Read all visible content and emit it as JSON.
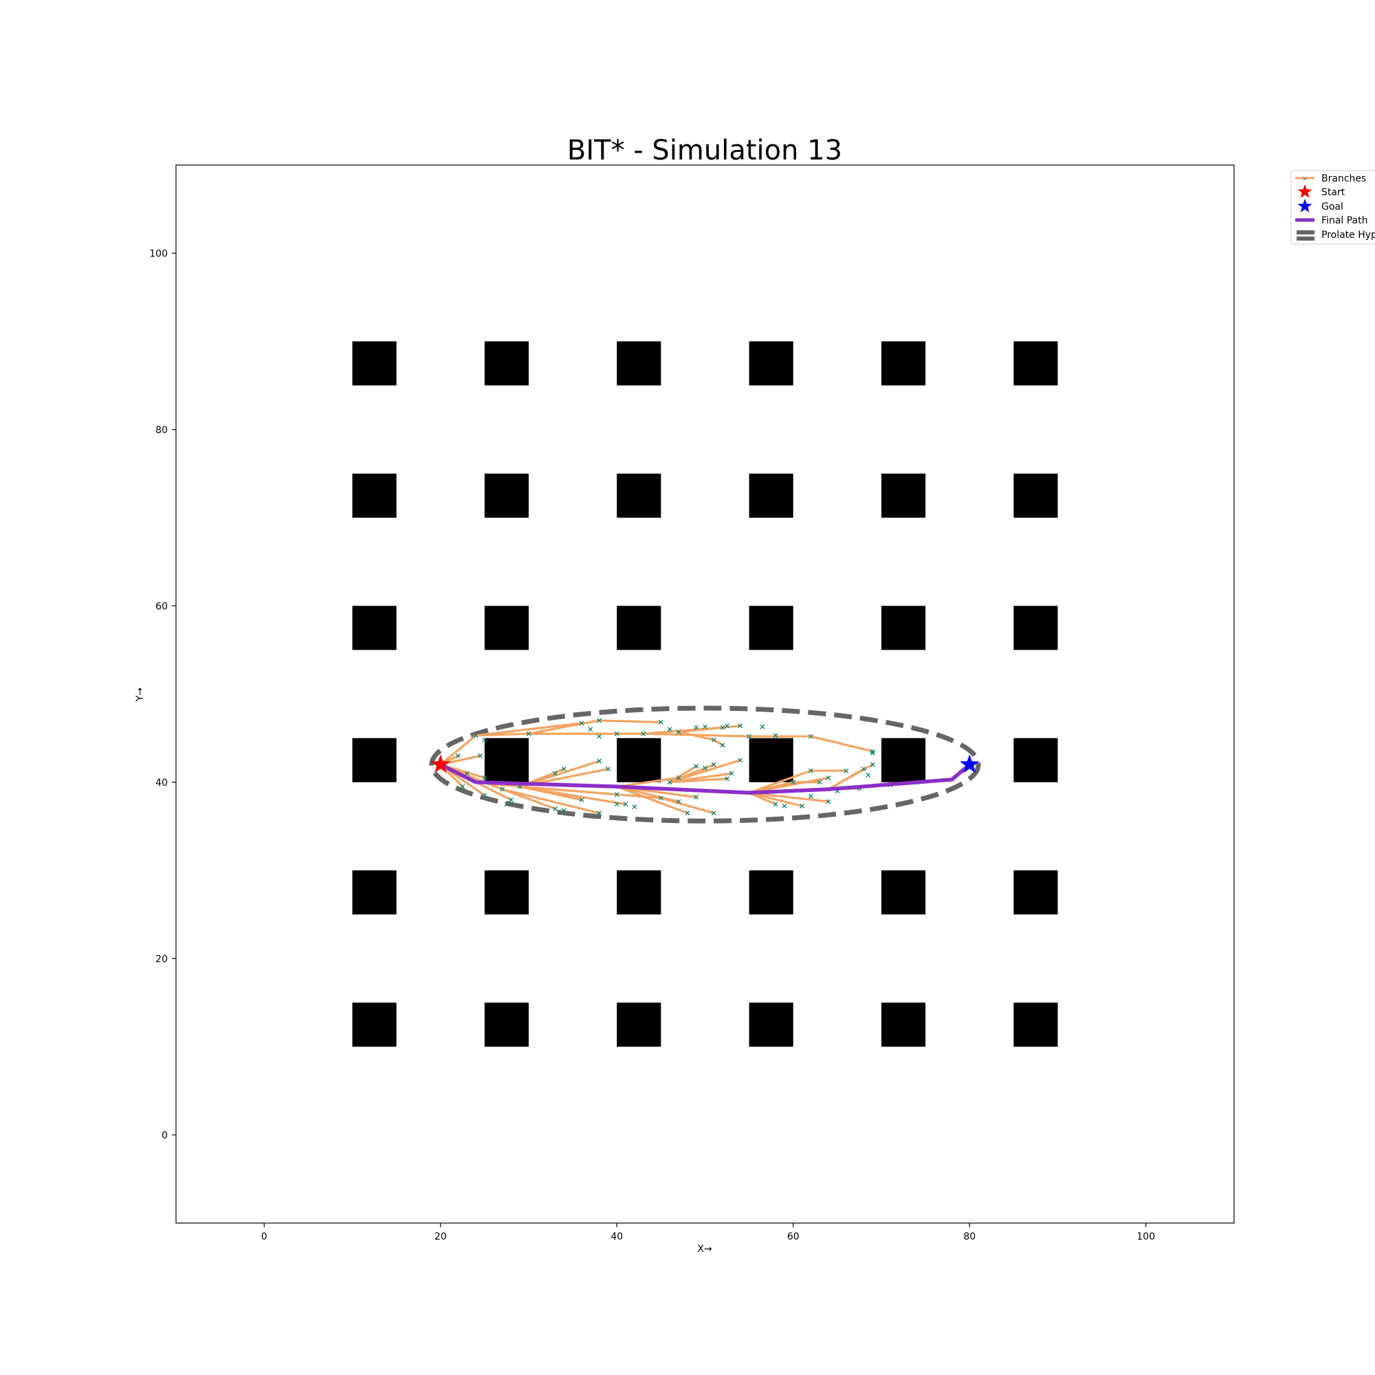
{
  "chart_data": {
    "type": "scatter",
    "title": "BIT* - Simulation 13",
    "xlabel": "X→",
    "ylabel": "Y→",
    "xlim": [
      -10,
      110
    ],
    "ylim": [
      -10,
      110
    ],
    "xticks": [
      0,
      20,
      40,
      60,
      80,
      100
    ],
    "yticks": [
      0,
      20,
      40,
      60,
      80,
      100
    ],
    "grid": false,
    "legend_position": "outside-top-right",
    "legend": [
      "Branches",
      "Start",
      "Goal",
      "Final Path",
      "Prolate Hyp"
    ],
    "colors": {
      "obstacle": "#000000",
      "branch": "#f4a460",
      "node": "#0e8a7a",
      "start": "#ff0000",
      "goal": "#0000ff",
      "path": "#8b2fc9",
      "ellipse": "#666666"
    },
    "start": [
      20,
      42
    ],
    "goal": [
      80,
      42
    ],
    "obstacle_size": 5,
    "obstacles_x": [
      10,
      25,
      40,
      55,
      70,
      85
    ],
    "obstacles_y": [
      10,
      25,
      40,
      55,
      70,
      85
    ],
    "ellipse": {
      "center": [
        50,
        42
      ],
      "semi_major": 31,
      "semi_minor": 6.4
    },
    "final_path": [
      [
        20,
        42
      ],
      [
        24,
        40
      ],
      [
        40,
        39.5
      ],
      [
        55,
        38.8
      ],
      [
        64,
        39.2
      ],
      [
        78,
        40.3
      ],
      [
        80,
        42
      ]
    ],
    "branches": [
      [
        [
          20,
          42
        ],
        [
          24,
          45.3
        ]
      ],
      [
        [
          24,
          45.3
        ],
        [
          30,
          45.5
        ]
      ],
      [
        [
          30,
          45.5
        ],
        [
          38,
          47
        ]
      ],
      [
        [
          30,
          45.5
        ],
        [
          43,
          45.5
        ]
      ],
      [
        [
          24,
          45.3
        ],
        [
          36,
          46.7
        ]
      ],
      [
        [
          38,
          47
        ],
        [
          45,
          46.8
        ]
      ],
      [
        [
          43,
          45.5
        ],
        [
          52,
          46.2
        ]
      ],
      [
        [
          43,
          45.5
        ],
        [
          55,
          45.2
        ]
      ],
      [
        [
          55,
          45.2
        ],
        [
          62,
          45.2
        ]
      ],
      [
        [
          62,
          45.2
        ],
        [
          69,
          43.5
        ]
      ],
      [
        [
          47,
          45.7
        ],
        [
          54,
          46.4
        ]
      ],
      [
        [
          47,
          45.7
        ],
        [
          51,
          44.8
        ]
      ],
      [
        [
          51,
          44.8
        ],
        [
          52,
          44.2
        ]
      ],
      [
        [
          20,
          42
        ],
        [
          22,
          43
        ]
      ],
      [
        [
          20,
          42
        ],
        [
          24.5,
          43
        ]
      ],
      [
        [
          20,
          42
        ],
        [
          23,
          41
        ]
      ],
      [
        [
          20,
          42
        ],
        [
          25,
          40.5
        ]
      ],
      [
        [
          20,
          42
        ],
        [
          22.5,
          39.5
        ]
      ],
      [
        [
          20,
          42
        ],
        [
          25,
          38.5
        ]
      ],
      [
        [
          20,
          42
        ],
        [
          28,
          38
        ]
      ],
      [
        [
          20,
          42
        ],
        [
          27,
          39.2
        ]
      ],
      [
        [
          24,
          40
        ],
        [
          29,
          39.5
        ]
      ],
      [
        [
          29,
          39.5
        ],
        [
          38,
          42.4
        ]
      ],
      [
        [
          29,
          39.5
        ],
        [
          39,
          41.5
        ]
      ],
      [
        [
          29,
          39.5
        ],
        [
          34,
          41.5
        ]
      ],
      [
        [
          29,
          39.5
        ],
        [
          36,
          38
        ]
      ],
      [
        [
          29,
          39.5
        ],
        [
          41,
          37.5
        ]
      ],
      [
        [
          29,
          39.5
        ],
        [
          45,
          38.2
        ]
      ],
      [
        [
          27,
          39.2
        ],
        [
          33,
          37
        ]
      ],
      [
        [
          27,
          39.2
        ],
        [
          38,
          36.5
        ]
      ],
      [
        [
          40,
          39.5
        ],
        [
          47,
          40.5
        ]
      ],
      [
        [
          46,
          40
        ],
        [
          51,
          42
        ]
      ],
      [
        [
          46,
          40
        ],
        [
          53,
          41
        ]
      ],
      [
        [
          46,
          40
        ],
        [
          54,
          42.5
        ]
      ],
      [
        [
          46,
          40
        ],
        [
          49,
          41.8
        ]
      ],
      [
        [
          46,
          40
        ],
        [
          52.5,
          40.4
        ]
      ],
      [
        [
          40,
          39.5
        ],
        [
          49,
          38.3
        ]
      ],
      [
        [
          40,
          39.5
        ],
        [
          47,
          37.8
        ]
      ],
      [
        [
          40,
          39.5
        ],
        [
          48,
          36.5
        ]
      ],
      [
        [
          45,
          38.2
        ],
        [
          51,
          36.5
        ]
      ],
      [
        [
          55,
          38.8
        ],
        [
          60,
          40
        ]
      ],
      [
        [
          55,
          38.8
        ],
        [
          62,
          41.3
        ]
      ],
      [
        [
          55,
          38.8
        ],
        [
          64,
          40.5
        ]
      ],
      [
        [
          55,
          38.8
        ],
        [
          58,
          37.5
        ]
      ],
      [
        [
          55,
          38.8
        ],
        [
          61,
          37.3
        ]
      ],
      [
        [
          55,
          38.8
        ],
        [
          64,
          37.8
        ]
      ],
      [
        [
          62,
          41.3
        ],
        [
          66,
          41.3
        ]
      ],
      [
        [
          64,
          39.2
        ],
        [
          68,
          41.5
        ]
      ],
      [
        [
          64,
          39.2
        ],
        [
          69,
          42
        ]
      ],
      [
        [
          64,
          39.2
        ],
        [
          67.5,
          39.3
        ]
      ],
      [
        [
          60,
          40
        ],
        [
          63,
          40
        ]
      ],
      [
        [
          71,
          39.7
        ],
        [
          74,
          40
        ]
      ]
    ],
    "nodes": [
      [
        22,
        43
      ],
      [
        24.5,
        43
      ],
      [
        23,
        41
      ],
      [
        22.5,
        39.5
      ],
      [
        25,
        40.5
      ],
      [
        25,
        38.5
      ],
      [
        28,
        38
      ],
      [
        27,
        39.2
      ],
      [
        27.5,
        37.5
      ],
      [
        24,
        45.3
      ],
      [
        25,
        44.8
      ],
      [
        30,
        45.5
      ],
      [
        36,
        46.7
      ],
      [
        38,
        47
      ],
      [
        37,
        46
      ],
      [
        38,
        45.2
      ],
      [
        40,
        45.5
      ],
      [
        43,
        45.5
      ],
      [
        45,
        46.8
      ],
      [
        46,
        46
      ],
      [
        47,
        45.7
      ],
      [
        49,
        46.2
      ],
      [
        50,
        46.3
      ],
      [
        52,
        46.2
      ],
      [
        52.5,
        46.4
      ],
      [
        54,
        46.4
      ],
      [
        55,
        45.2
      ],
      [
        56.5,
        46.3
      ],
      [
        58,
        45.3
      ],
      [
        62,
        45.2
      ],
      [
        69,
        43.5
      ],
      [
        69,
        43.3
      ],
      [
        51,
        44.8
      ],
      [
        52,
        44.2
      ],
      [
        29,
        39.5
      ],
      [
        33,
        41
      ],
      [
        34,
        41.5
      ],
      [
        38,
        42.4
      ],
      [
        39,
        41.5
      ],
      [
        36,
        38
      ],
      [
        33,
        37
      ],
      [
        34,
        36.8
      ],
      [
        38,
        36.5
      ],
      [
        40,
        37.5
      ],
      [
        41,
        37.5
      ],
      [
        42,
        37.2
      ],
      [
        45,
        38.2
      ],
      [
        40,
        38.6
      ],
      [
        46,
        40
      ],
      [
        47,
        40.5
      ],
      [
        49,
        41.8
      ],
      [
        50,
        41.6
      ],
      [
        51,
        42
      ],
      [
        53,
        41
      ],
      [
        54,
        42.5
      ],
      [
        52.5,
        40.4
      ],
      [
        49,
        38.3
      ],
      [
        47,
        37.8
      ],
      [
        48,
        36.5
      ],
      [
        51,
        36.5
      ],
      [
        55,
        38.8
      ],
      [
        58,
        37.5
      ],
      [
        59,
        37.3
      ],
      [
        61,
        37.3
      ],
      [
        62,
        38.4
      ],
      [
        64,
        37.8
      ],
      [
        60,
        40
      ],
      [
        62,
        41.3
      ],
      [
        63,
        40
      ],
      [
        64,
        40.5
      ],
      [
        65,
        39
      ],
      [
        66,
        41.3
      ],
      [
        67.5,
        39.3
      ],
      [
        68,
        41.5
      ],
      [
        68.5,
        40.8
      ],
      [
        69,
        42
      ],
      [
        71,
        39.7
      ],
      [
        74,
        40
      ]
    ]
  }
}
